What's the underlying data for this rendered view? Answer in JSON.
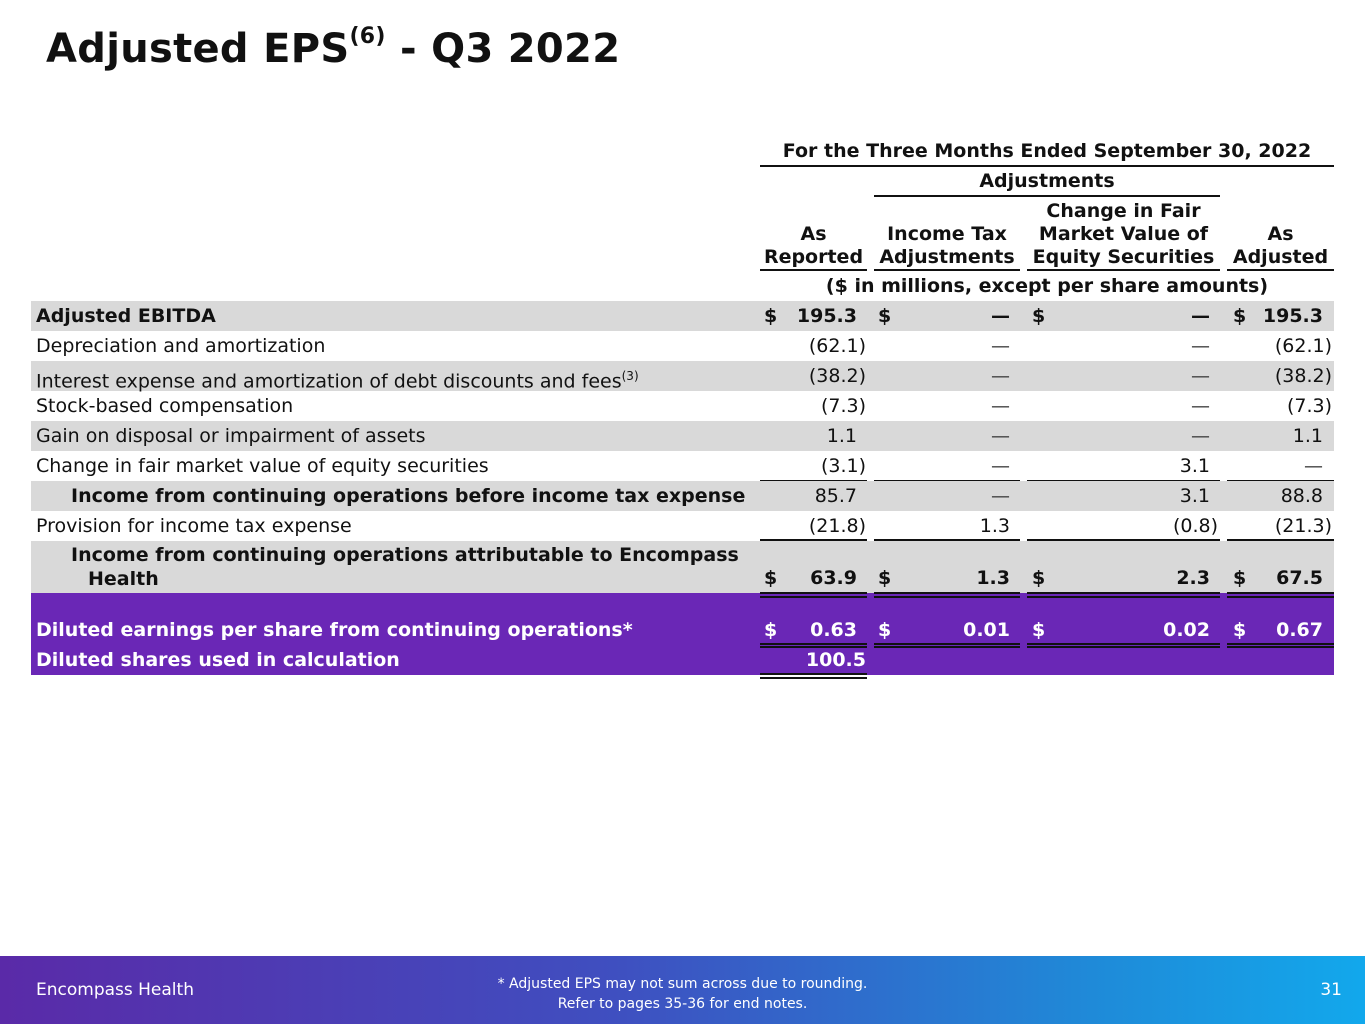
{
  "slide": {
    "title_main": "Adjusted EPS",
    "title_sup": "(6)",
    "title_rest": " - Q3 2022"
  },
  "table": {
    "period_header": "For the Three Months Ended September 30, 2022",
    "adjustments_header": "Adjustments",
    "columns": {
      "as_reported": [
        "As",
        "Reported"
      ],
      "income_tax": [
        "Income Tax",
        "Adjustments"
      ],
      "change_fmv": [
        "Change in Fair",
        "Market Value of",
        "Equity Securities"
      ],
      "as_adjusted": [
        "As",
        "Adjusted"
      ]
    },
    "units_note": "($ in millions, except per share amounts)",
    "rows": [
      {
        "label": "Adjusted EBITDA",
        "values": [
          "195.3",
          "—",
          "—",
          "195.3"
        ]
      },
      {
        "label": "Depreciation and amortization",
        "values": [
          "(62.1)",
          "—",
          "—",
          "(62.1)"
        ]
      },
      {
        "label": "Interest expense and amortization of debt discounts and fees",
        "label_sup": "(3)",
        "values": [
          "(38.2)",
          "—",
          "—",
          "(38.2)"
        ]
      },
      {
        "label": "Stock-based compensation",
        "values": [
          "(7.3)",
          "—",
          "—",
          "(7.3)"
        ]
      },
      {
        "label": "Gain on disposal or impairment of assets",
        "values": [
          "1.1",
          "—",
          "—",
          "1.1"
        ]
      },
      {
        "label": "Change in fair market value of equity securities",
        "values": [
          "(3.1)",
          "—",
          "3.1",
          "—"
        ]
      },
      {
        "label": "Income from continuing operations before income tax expense",
        "values": [
          "85.7",
          "—",
          "3.1",
          "88.8"
        ]
      },
      {
        "label": "Provision for income tax expense",
        "values": [
          "(21.8)",
          "1.3",
          "(0.8)",
          "(21.3)"
        ]
      },
      {
        "label_line1": "Income from continuing operations attributable to Encompass",
        "label_line2": "Health",
        "values": [
          "63.9",
          "1.3",
          "2.3",
          "67.5"
        ]
      },
      {
        "label": "Diluted earnings per share from continuing operations*",
        "values": [
          "0.63",
          "0.01",
          "0.02",
          "0.67"
        ]
      },
      {
        "label": "Diluted shares used in calculation",
        "values": [
          "100.5"
        ]
      }
    ],
    "currency_symbol": "$"
  },
  "footer": {
    "company": "Encompass Health",
    "note_line1": "*  Adjusted EPS may not sum across due to rounding.",
    "note_line2": "Refer to pages 35-36 for end notes.",
    "page_number": "31"
  },
  "colors": {
    "shade": "#d9d9d9",
    "purple": "#6a27b6",
    "footer_start": "#5a2aa8",
    "footer_end": "#12a8ec"
  }
}
